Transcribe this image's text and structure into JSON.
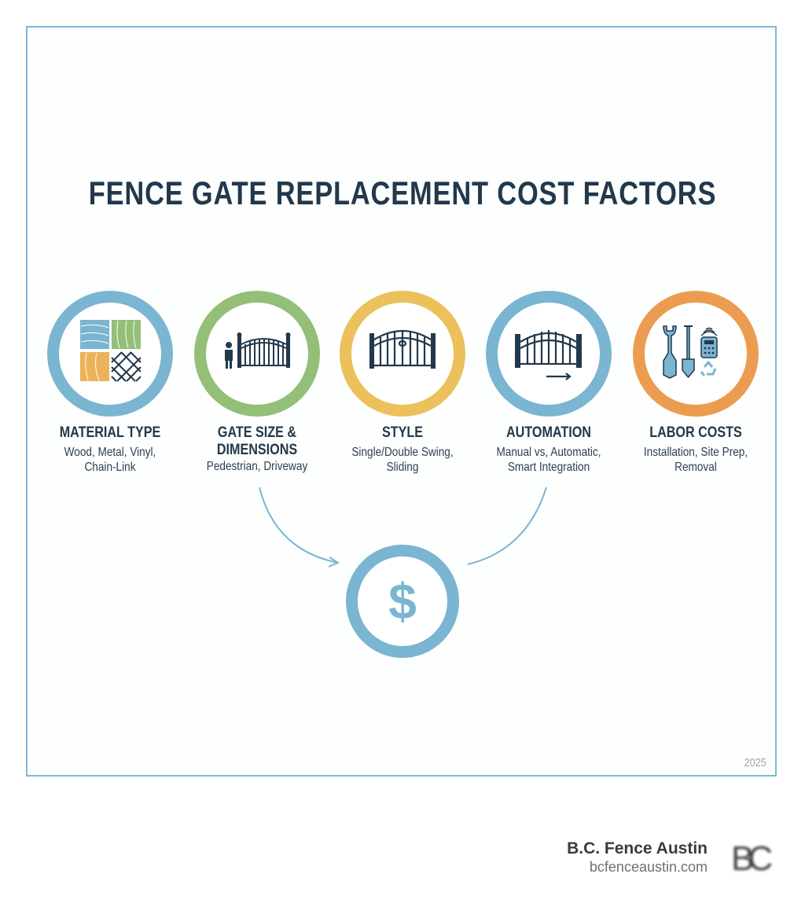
{
  "title": "FENCE GATE REPLACEMENT COST FACTORS",
  "factors": [
    {
      "heading": "MATERIAL TYPE",
      "lines": [
        "Wood, Metal, Vinyl,",
        "Chain-Link"
      ],
      "color": "#7ab5d1",
      "icon": "material-swatches-icon"
    },
    {
      "heading_lines": [
        "GATE SIZE &",
        "DIMENSIONS"
      ],
      "lines": [
        "Pedestrian, Driveway"
      ],
      "color": "#93bf78",
      "icon": "gate-with-person-icon"
    },
    {
      "heading": "STYLE",
      "lines": [
        "Single/Double Swing,",
        "Sliding"
      ],
      "color": "#ecc05a",
      "icon": "double-swing-gate-icon"
    },
    {
      "heading": "AUTOMATION",
      "lines": [
        "Manual vs, Automatic,",
        "Smart Integration"
      ],
      "color": "#7ab5d1",
      "icon": "sliding-gate-icon"
    },
    {
      "heading": "LABOR COSTS",
      "lines": [
        "Installation, Site Prep,",
        "Removal"
      ],
      "color": "#ec9c50",
      "icon": "tools-icon"
    }
  ],
  "result": {
    "symbol": "$",
    "color": "#7ab5d1"
  },
  "year": "2025",
  "brand": {
    "name": "B.C. Fence Austin",
    "url": "bcfenceaustin.com",
    "logo_text": "BC"
  }
}
